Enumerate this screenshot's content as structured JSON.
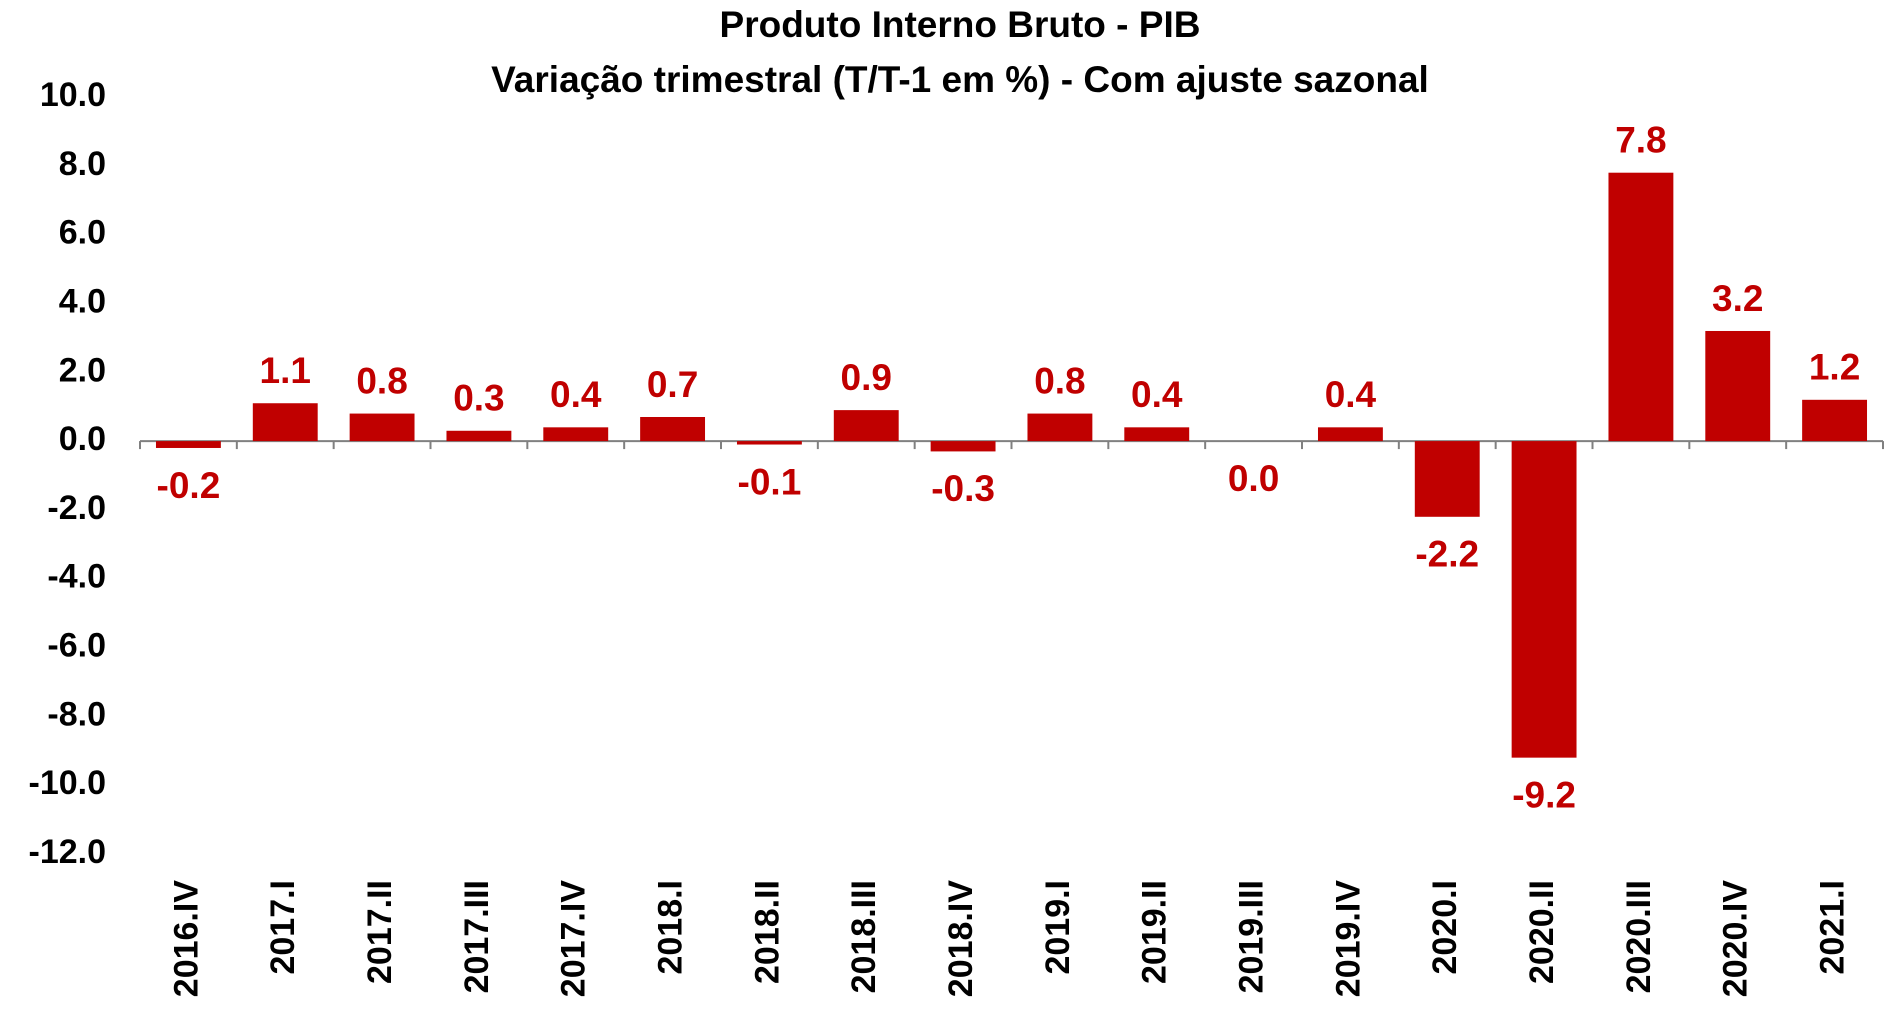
{
  "chart_data": {
    "type": "bar",
    "title": "Produto Interno Bruto - PIB",
    "subtitle": "Variação trimestral (T/T-1 em %) - Com ajuste sazonal",
    "categories": [
      "2016.IV",
      "2017.I",
      "2017.II",
      "2017.III",
      "2017.IV",
      "2018.I",
      "2018.II",
      "2018.III",
      "2018.IV",
      "2019.I",
      "2019.II",
      "2019.III",
      "2019.IV",
      "2020.I",
      "2020.II",
      "2020.III",
      "2020.IV",
      "2021.I"
    ],
    "values": [
      -0.2,
      1.1,
      0.8,
      0.3,
      0.4,
      0.7,
      -0.1,
      0.9,
      -0.3,
      0.8,
      0.4,
      0.0,
      0.4,
      -2.2,
      -9.2,
      7.8,
      3.2,
      1.2
    ],
    "value_labels": [
      "-0.2",
      "1.1",
      "0.8",
      "0.3",
      "0.4",
      "0.7",
      "-0.1",
      "0.9",
      "-0.3",
      "0.8",
      "0.4",
      "0.0",
      "0.4",
      "-2.2",
      "-9.2",
      "7.8",
      "3.2",
      "1.2"
    ],
    "color": "#c00000",
    "ylim": [
      -12,
      10
    ],
    "yticks": [
      {
        "value": 10,
        "label": "10.0"
      },
      {
        "value": 8,
        "label": "8.0"
      },
      {
        "value": 6,
        "label": "6.0"
      },
      {
        "value": 4,
        "label": "4.0"
      },
      {
        "value": 2,
        "label": "2.0"
      },
      {
        "value": 0,
        "label": "0.0"
      },
      {
        "value": -2,
        "label": "-2.0"
      },
      {
        "value": -4,
        "label": "-4.0"
      },
      {
        "value": -6,
        "label": "-6.0"
      },
      {
        "value": -8,
        "label": "-8.0"
      },
      {
        "value": -10,
        "label": "-10.0"
      },
      {
        "value": -12,
        "label": "-12.0"
      }
    ],
    "grid": false
  }
}
